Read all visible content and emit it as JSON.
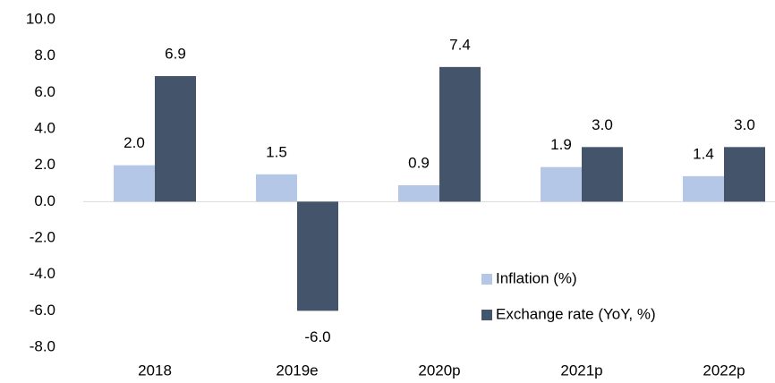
{
  "chart_data": {
    "type": "bar",
    "categories": [
      "2018",
      "2019e",
      "2020p",
      "2021p",
      "2022p"
    ],
    "series": [
      {
        "name": "Inflation (%)",
        "color": "#b4c7e7",
        "values": [
          2.0,
          1.5,
          0.9,
          1.9,
          1.4
        ],
        "value_labels": [
          "2.0",
          "1.5",
          "0.9",
          "1.9",
          "1.4"
        ]
      },
      {
        "name": "Exchange rate  (YoY, %)",
        "color": "#44546a",
        "values": [
          6.9,
          -6.0,
          7.4,
          3.0,
          3.0
        ],
        "value_labels": [
          "6.9",
          "-6.0",
          "7.4",
          "3.0",
          "3.0"
        ]
      }
    ],
    "ylim": [
      -8,
      10
    ],
    "yticks": [
      {
        "value": -8,
        "label": "-8.0"
      },
      {
        "value": -6,
        "label": "-6.0"
      },
      {
        "value": -4,
        "label": "-4.0"
      },
      {
        "value": -2,
        "label": "-2.0"
      },
      {
        "value": 0,
        "label": "0.0"
      },
      {
        "value": 2,
        "label": "2.0"
      },
      {
        "value": 4,
        "label": "4.0"
      },
      {
        "value": 6,
        "label": "6.0"
      },
      {
        "value": 8,
        "label": "8.0"
      },
      {
        "value": 10,
        "label": "10.0"
      }
    ],
    "grid": false,
    "legend": "right"
  }
}
